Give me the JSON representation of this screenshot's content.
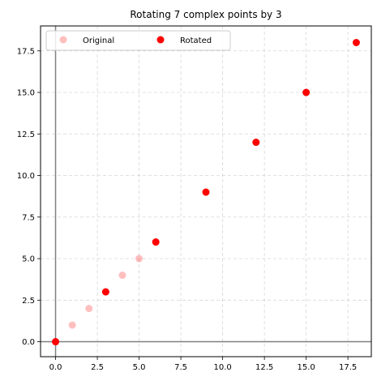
{
  "chart_data": {
    "type": "scatter",
    "title": "Rotating 7 complex points by 3",
    "xlabel": "",
    "ylabel": "",
    "xlim": [
      -0.9,
      18.9
    ],
    "ylim": [
      -0.9,
      19.0
    ],
    "x_ticks": [
      0.0,
      2.5,
      5.0,
      7.5,
      10.0,
      12.5,
      15.0,
      17.5
    ],
    "x_tick_labels": [
      "0.0",
      "2.5",
      "5.0",
      "7.5",
      "10.0",
      "12.5",
      "15.0",
      "17.5"
    ],
    "y_ticks": [
      0.0,
      2.5,
      5.0,
      7.5,
      10.0,
      12.5,
      15.0,
      17.5
    ],
    "y_tick_labels": [
      "0.0",
      "2.5",
      "5.0",
      "7.5",
      "10.0",
      "12.5",
      "15.0",
      "17.5"
    ],
    "grid": true,
    "axis_lines_at_zero": true,
    "legend_position": "upper-left",
    "series": [
      {
        "name": "Original",
        "color": "#ff0000",
        "opacity": 0.25,
        "x": [
          0,
          1,
          2,
          3,
          4,
          5,
          6
        ],
        "y": [
          0,
          1,
          2,
          3,
          4,
          5,
          6
        ]
      },
      {
        "name": "Rotated",
        "color": "#ff0000",
        "opacity": 1,
        "x": [
          0,
          3,
          6,
          9,
          12,
          15,
          18
        ],
        "y": [
          0,
          3,
          6,
          9,
          12,
          15,
          18
        ]
      }
    ]
  }
}
